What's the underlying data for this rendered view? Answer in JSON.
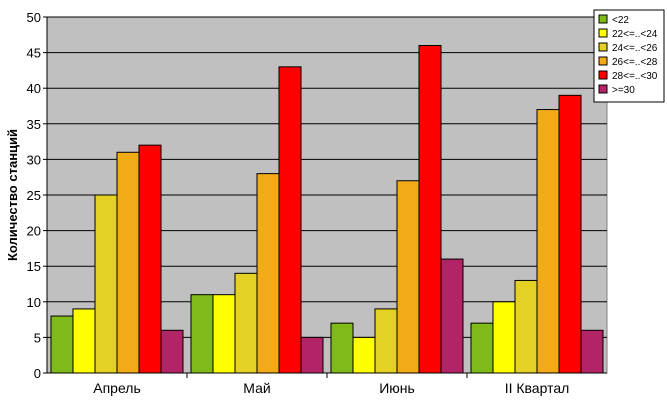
{
  "chart_data": {
    "type": "bar",
    "categories": [
      "Апрель",
      "Май",
      "Июнь",
      "II Квартал"
    ],
    "series": [
      {
        "name": "<22",
        "values": [
          8,
          11,
          7,
          7
        ],
        "color": "#7fba1a"
      },
      {
        "name": "22<=..<24",
        "values": [
          9,
          11,
          5,
          10
        ],
        "color": "#ffff00"
      },
      {
        "name": "24<=..<26",
        "values": [
          25,
          14,
          9,
          13
        ],
        "color": "#e4d124"
      },
      {
        "name": "26<=..<28",
        "values": [
          31,
          28,
          27,
          37
        ],
        "color": "#f2aa16"
      },
      {
        "name": "28<=..<30",
        "values": [
          32,
          43,
          46,
          39
        ],
        "color": "#ff0000"
      },
      {
        "name": ">=30",
        "values": [
          6,
          5,
          16,
          6
        ],
        "color": "#b22466"
      }
    ],
    "title": "",
    "xlabel": "",
    "ylabel": "Количество станций",
    "ylim": [
      0,
      50
    ],
    "yticks": [
      0,
      5,
      10,
      15,
      20,
      25,
      30,
      35,
      40,
      45,
      50
    ],
    "grid": true,
    "plot_background": "#c0c0c0",
    "legend_position": "top-right"
  }
}
